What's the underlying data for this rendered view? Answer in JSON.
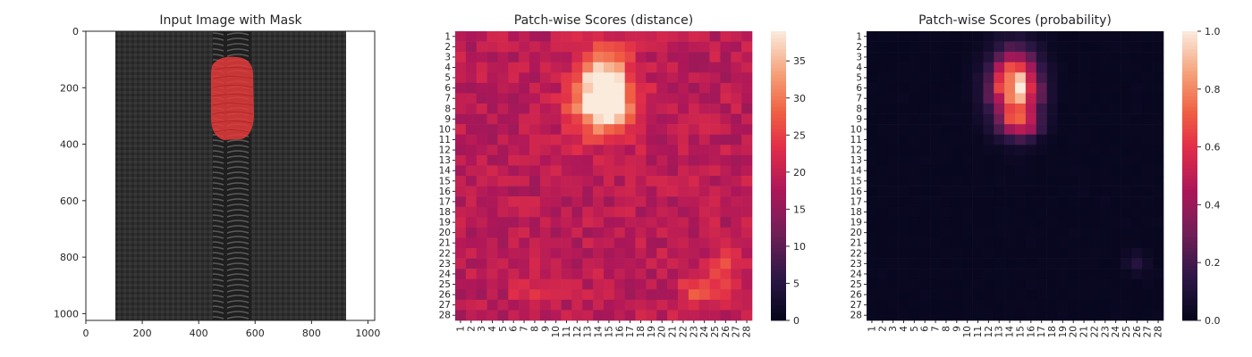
{
  "chart_data": [
    {
      "type": "image",
      "title": "Input Image with Mask",
      "xlim": [
        0,
        1024
      ],
      "ylim": [
        1024,
        0
      ],
      "xticks": [
        "0",
        "200",
        "400",
        "600",
        "800",
        "1000"
      ],
      "yticks": [
        "0",
        "200",
        "400",
        "600",
        "800",
        "1000"
      ],
      "image_description_colors": {
        "zipper_tape": "#2e2e2e",
        "background": "#ffffff",
        "mask": "#e53b3b"
      }
    },
    {
      "type": "heatmap",
      "title": "Patch-wise Scores (distance)",
      "rows": 28,
      "cols": 28,
      "row_labels": [
        "1",
        "2",
        "3",
        "4",
        "5",
        "6",
        "7",
        "8",
        "9",
        "10",
        "11",
        "12",
        "13",
        "14",
        "15",
        "16",
        "17",
        "18",
        "19",
        "20",
        "21",
        "22",
        "23",
        "24",
        "25",
        "26",
        "27",
        "28"
      ],
      "col_labels": [
        "1",
        "2",
        "3",
        "4",
        "5",
        "6",
        "7",
        "8",
        "9",
        "10",
        "11",
        "12",
        "13",
        "14",
        "15",
        "16",
        "17",
        "18",
        "19",
        "20",
        "21",
        "22",
        "23",
        "24",
        "25",
        "26",
        "27",
        "28"
      ],
      "colorbar": {
        "min": 0,
        "max": 39,
        "ticks": [
          "0",
          "5",
          "10",
          "15",
          "20",
          "25",
          "30",
          "35"
        ],
        "tick_values": [
          0,
          5,
          10,
          15,
          20,
          25,
          30,
          35
        ]
      },
      "base_value": 19,
      "hotspots": [
        {
          "row": 5.5,
          "col": 14.5,
          "sigma_r": 2.4,
          "sigma_c": 1.6,
          "peak": 39
        },
        {
          "row": 8.0,
          "col": 14.5,
          "sigma_r": 2.0,
          "sigma_c": 2.2,
          "peak": 34
        },
        {
          "row": 25.5,
          "col": 24.0,
          "sigma_r": 1.2,
          "sigma_c": 1.6,
          "peak": 27
        },
        {
          "row": 23.0,
          "col": 26.0,
          "sigma_r": 1.0,
          "sigma_c": 0.9,
          "peak": 27
        },
        {
          "row": 26.0,
          "col": 8.0,
          "sigma_r": 0.8,
          "sigma_c": 1.2,
          "peak": 25
        }
      ]
    },
    {
      "type": "heatmap",
      "title": "Patch-wise Scores (probability)",
      "rows": 28,
      "cols": 28,
      "row_labels": [
        "1",
        "2",
        "3",
        "4",
        "5",
        "6",
        "7",
        "8",
        "9",
        "10",
        "11",
        "12",
        "13",
        "14",
        "15",
        "16",
        "17",
        "18",
        "19",
        "20",
        "21",
        "22",
        "23",
        "24",
        "25",
        "26",
        "27",
        "28"
      ],
      "col_labels": [
        "1",
        "2",
        "3",
        "4",
        "5",
        "6",
        "7",
        "8",
        "9",
        "10",
        "11",
        "12",
        "13",
        "14",
        "15",
        "16",
        "17",
        "18",
        "19",
        "20",
        "21",
        "22",
        "23",
        "24",
        "25",
        "26",
        "27",
        "28"
      ],
      "colorbar": {
        "min": 0,
        "max": 1,
        "ticks": [
          "0.0",
          "0.2",
          "0.4",
          "0.6",
          "0.8",
          "1.0"
        ],
        "tick_values": [
          0,
          0.2,
          0.4,
          0.6,
          0.8,
          1.0
        ]
      },
      "base_value": 0.02,
      "hotspots": [
        {
          "row": 6.0,
          "col": 14.5,
          "sigma_r": 2.3,
          "sigma_c": 1.5,
          "peak": 0.95
        },
        {
          "row": 9.5,
          "col": 15.0,
          "sigma_r": 0.8,
          "sigma_c": 1.2,
          "peak": 0.45
        },
        {
          "row": 23.0,
          "col": 26.0,
          "sigma_r": 0.7,
          "sigma_c": 0.7,
          "peak": 0.12
        }
      ]
    }
  ]
}
